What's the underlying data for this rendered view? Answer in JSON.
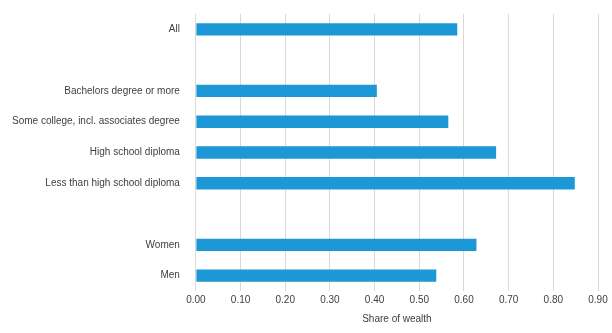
{
  "chart_data": {
    "type": "bar",
    "orientation": "horizontal",
    "categories": [
      "All",
      null,
      "Bachelors degree or more",
      "Some college, incl. associates degree",
      "High school diploma",
      "Less than high school diploma",
      null,
      "Women",
      "Men"
    ],
    "values": [
      0.585,
      null,
      0.405,
      0.565,
      0.672,
      0.848,
      null,
      0.628,
      0.538
    ],
    "color": "#1b98d5",
    "x_label": "Share of wealth",
    "xlim": [
      0,
      0.9
    ],
    "xticks": [
      {
        "value": 0,
        "label": "0.00"
      },
      {
        "value": 0.1,
        "label": "0.10"
      },
      {
        "value": 0.2,
        "label": "0.20"
      },
      {
        "value": 0.3,
        "label": "0.30"
      },
      {
        "value": 0.4,
        "label": "0.40"
      },
      {
        "value": 0.5,
        "label": "0.50"
      },
      {
        "value": 0.6,
        "label": "0.60"
      },
      {
        "value": 0.7,
        "label": "0.70"
      },
      {
        "value": 0.8,
        "label": "0.80"
      },
      {
        "value": 0.9,
        "label": "0.90"
      }
    ],
    "grid": true
  }
}
